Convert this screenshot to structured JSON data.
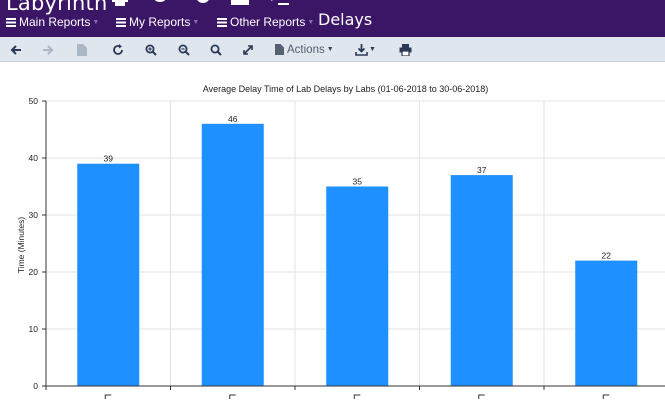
{
  "app": {
    "brand": "Labyrinth",
    "page_title": "Delays",
    "menus": [
      {
        "label": "Main Reports"
      },
      {
        "label": "My Reports"
      },
      {
        "label": "Other Reports"
      }
    ],
    "top_icons": [
      "print-icon",
      "pie-chart-icon",
      "settings-icon",
      "inbox-icon",
      "terminal-icon"
    ]
  },
  "toolbar": {
    "actions_label": "Actions",
    "buttons": [
      "back-icon",
      "forward-icon",
      "document-icon",
      "refresh-icon",
      "zoom-in-icon",
      "zoom-out-icon",
      "zoom-reset-icon",
      "fullscreen-icon",
      "actions-menu",
      "download-icon",
      "print-icon"
    ]
  },
  "chart_data": {
    "type": "bar",
    "title": "Average Delay Time of Lab Delays by Labs (01-06-2018 to 30-06-2018)",
    "xlabel": "",
    "ylabel": "Time (Minutes)",
    "categories": [
      "",
      "",
      "",
      "",
      ""
    ],
    "values": [
      39,
      46,
      35,
      37,
      22
    ],
    "data_labels": [
      "39",
      "46",
      "35",
      "37",
      "22"
    ],
    "ylim": [
      0,
      50
    ],
    "yticks": [
      "0",
      "10",
      "20",
      "30",
      "40",
      "50"
    ],
    "grid": true,
    "bar_color": "#1e90ff"
  },
  "colors": {
    "appbar": "#3b1566",
    "toolbar": "#dfe6ee",
    "bar": "#1e90ff"
  }
}
